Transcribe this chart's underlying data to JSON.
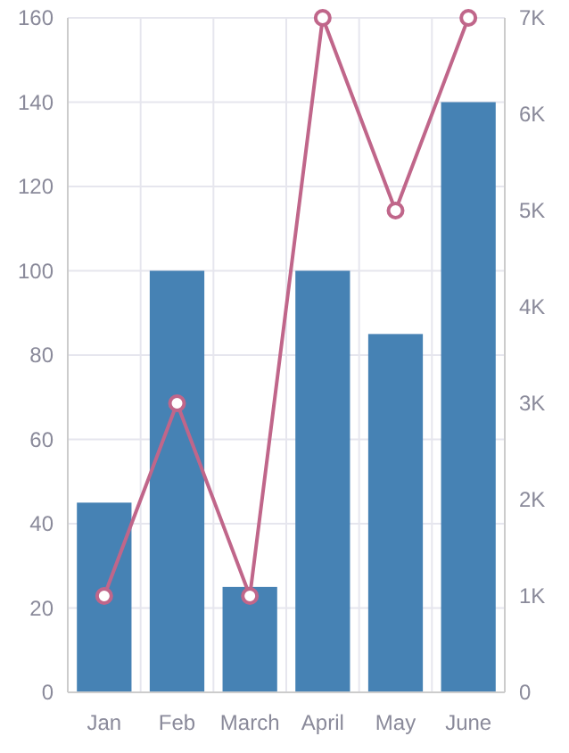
{
  "chart_data": {
    "type": "bar",
    "categories": [
      "Jan",
      "Feb",
      "March",
      "April",
      "May",
      "June"
    ],
    "series": [
      {
        "color": "#4682b4",
        "values": [
          45,
          100,
          25,
          100,
          85,
          140
        ]
      },
      {
        "type": "line",
        "axis": "y2",
        "color": "#c0668a",
        "marker": "circle",
        "values": [
          1000,
          3000,
          1000,
          7000,
          5000,
          7000
        ]
      }
    ],
    "ylim": [
      0,
      160
    ],
    "yticks": [
      0,
      20,
      40,
      60,
      80,
      100,
      120,
      140,
      160
    ],
    "y2lim": [
      0,
      7000
    ],
    "y2ticks": [
      0,
      {
        "value": 1000,
        "label": "1K"
      },
      {
        "value": 2000,
        "label": "2K"
      },
      {
        "value": 3000,
        "label": "3K"
      },
      {
        "value": 4000,
        "label": "4K"
      },
      {
        "value": 5000,
        "label": "5K"
      },
      {
        "value": 6000,
        "label": "6K"
      },
      {
        "value": 7000,
        "label": "7K"
      }
    ],
    "grid": true
  }
}
